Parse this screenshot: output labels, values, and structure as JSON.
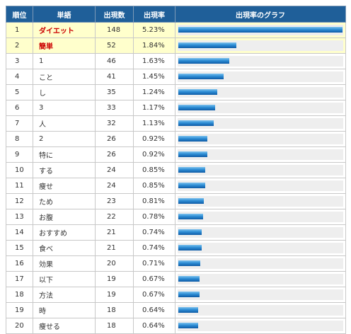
{
  "table": {
    "headers": {
      "rank": "順位",
      "word": "単語",
      "count": "出現数",
      "rate": "出現率",
      "graph": "出現率のグラフ"
    },
    "rows": [
      {
        "rank": "1",
        "word": "ダイエット",
        "count": "148",
        "rate": "5.23%",
        "highlight": true
      },
      {
        "rank": "2",
        "word": "簡単",
        "count": "52",
        "rate": "1.84%",
        "highlight": true
      },
      {
        "rank": "3",
        "word": "1",
        "count": "46",
        "rate": "1.63%",
        "highlight": false
      },
      {
        "rank": "4",
        "word": "こと",
        "count": "41",
        "rate": "1.45%",
        "highlight": false
      },
      {
        "rank": "5",
        "word": "し",
        "count": "35",
        "rate": "1.24%",
        "highlight": false
      },
      {
        "rank": "6",
        "word": "3",
        "count": "33",
        "rate": "1.17%",
        "highlight": false
      },
      {
        "rank": "7",
        "word": "人",
        "count": "32",
        "rate": "1.13%",
        "highlight": false
      },
      {
        "rank": "8",
        "word": "2",
        "count": "26",
        "rate": "0.92%",
        "highlight": false
      },
      {
        "rank": "9",
        "word": "特に",
        "count": "26",
        "rate": "0.92%",
        "highlight": false
      },
      {
        "rank": "10",
        "word": "する",
        "count": "24",
        "rate": "0.85%",
        "highlight": false
      },
      {
        "rank": "11",
        "word": "痩せ",
        "count": "24",
        "rate": "0.85%",
        "highlight": false
      },
      {
        "rank": "12",
        "word": "ため",
        "count": "23",
        "rate": "0.81%",
        "highlight": false
      },
      {
        "rank": "13",
        "word": "お腹",
        "count": "22",
        "rate": "0.78%",
        "highlight": false
      },
      {
        "rank": "14",
        "word": "おすすめ",
        "count": "21",
        "rate": "0.74%",
        "highlight": false
      },
      {
        "rank": "15",
        "word": "食べ",
        "count": "21",
        "rate": "0.74%",
        "highlight": false
      },
      {
        "rank": "16",
        "word": "効果",
        "count": "20",
        "rate": "0.71%",
        "highlight": false
      },
      {
        "rank": "17",
        "word": "以下",
        "count": "19",
        "rate": "0.67%",
        "highlight": false
      },
      {
        "rank": "18",
        "word": "方法",
        "count": "19",
        "rate": "0.67%",
        "highlight": false
      },
      {
        "rank": "19",
        "word": "時",
        "count": "18",
        "rate": "0.64%",
        "highlight": false
      },
      {
        "rank": "20",
        "word": "痩せる",
        "count": "18",
        "rate": "0.64%",
        "highlight": false
      }
    ]
  },
  "colors": {
    "header_bg": "#1f5f99",
    "highlight_row_bg": "#ffffcc",
    "highlight_word": "#cc0000",
    "bar": "#1f7fd0"
  }
}
